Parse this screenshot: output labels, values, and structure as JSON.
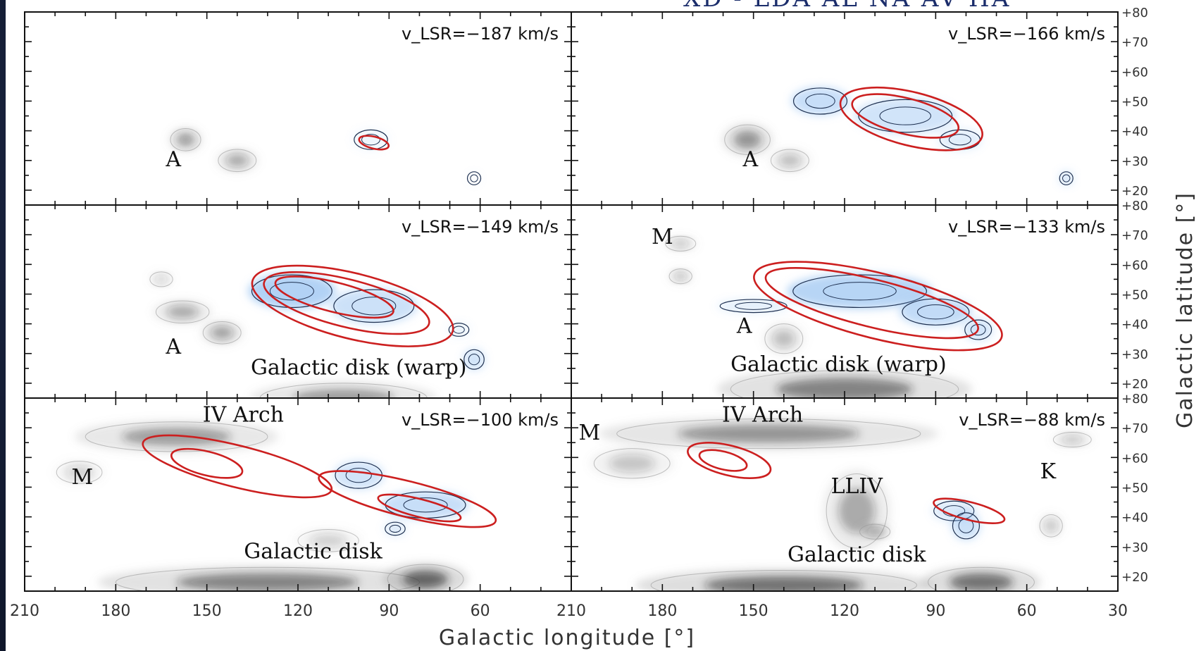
{
  "header_fragment": "XD - LDA AL NA AV HA",
  "chart_data": {
    "type": "heatmap",
    "xlabel": "Galactic longitude [°]",
    "ylabel": "Galactic latitude [°]",
    "xlim": [
      210,
      30
    ],
    "ylim": [
      15,
      80
    ],
    "x_ticks_left": [
      210,
      180,
      150,
      120,
      90,
      60
    ],
    "x_ticks_right": [
      210,
      180,
      150,
      120,
      90,
      60,
      30
    ],
    "y_ticks": [
      "+20",
      "+30",
      "+40",
      "+50",
      "+60",
      "+70",
      "+80"
    ],
    "panels": [
      {
        "velocity_label": "v_LSR=−187 km/s",
        "annotations": [
          {
            "text": "A",
            "l": 161,
            "b": 28
          }
        ],
        "gray_blobs": [
          {
            "l": 157,
            "b": 37,
            "sl": 4,
            "sb": 3,
            "a": 0.55
          },
          {
            "l": 140,
            "b": 30,
            "sl": 5,
            "sb": 3,
            "a": 0.45
          }
        ],
        "blue_blobs": [
          {
            "l": 96,
            "b": 37,
            "sl": 5,
            "sb": 3,
            "a": 0.15
          },
          {
            "l": 62,
            "b": 24,
            "sl": 2,
            "sb": 2,
            "a": 0.05
          }
        ],
        "red_contours": [
          {
            "l": 95,
            "b": 36,
            "rl": 5,
            "rb": 2
          }
        ]
      },
      {
        "velocity_label": "v_LSR=−166 km/s",
        "annotations": [
          {
            "text": "A",
            "l": 151,
            "b": 28
          }
        ],
        "gray_blobs": [
          {
            "l": 152,
            "b": 37,
            "sl": 6,
            "sb": 4,
            "a": 0.6
          },
          {
            "l": 138,
            "b": 30,
            "sl": 5,
            "sb": 3,
            "a": 0.35
          }
        ],
        "blue_blobs": [
          {
            "l": 128,
            "b": 50,
            "sl": 8,
            "sb": 4,
            "a": 0.55
          },
          {
            "l": 100,
            "b": 45,
            "sl": 14,
            "sb": 5,
            "a": 0.45
          },
          {
            "l": 82,
            "b": 37,
            "sl": 6,
            "sb": 3,
            "a": 0.3
          },
          {
            "l": 47,
            "b": 24,
            "sl": 2,
            "sb": 2,
            "a": 0.4
          }
        ],
        "red_contours": [
          {
            "l": 98,
            "b": 44,
            "rl": 24,
            "rb": 9
          },
          {
            "l": 100,
            "b": 45,
            "rl": 18,
            "rb": 6
          }
        ]
      },
      {
        "velocity_label": "v_LSR=−149 km/s",
        "annotations": [
          {
            "text": "A",
            "l": 161,
            "b": 30
          },
          {
            "text": "Galactic disk (warp)",
            "l": 100,
            "b": 23
          }
        ],
        "gray_blobs": [
          {
            "l": 158,
            "b": 44,
            "sl": 7,
            "sb": 3,
            "a": 0.45
          },
          {
            "l": 145,
            "b": 37,
            "sl": 5,
            "sb": 3,
            "a": 0.5
          },
          {
            "l": 165,
            "b": 55,
            "sl": 3,
            "sb": 2,
            "a": 0.25
          },
          {
            "l": 105,
            "b": 15,
            "sl": 22,
            "sb": 4,
            "a": 0.55
          }
        ],
        "blue_blobs": [
          {
            "l": 122,
            "b": 51,
            "sl": 12,
            "sb": 5,
            "a": 0.75
          },
          {
            "l": 95,
            "b": 46,
            "sl": 12,
            "sb": 5,
            "a": 0.5
          },
          {
            "l": 62,
            "b": 28,
            "sl": 3,
            "sb": 3,
            "a": 0.45
          },
          {
            "l": 67,
            "b": 38,
            "sl": 3,
            "sb": 2,
            "a": 0.2
          }
        ],
        "red_contours": [
          {
            "l": 102,
            "b": 46,
            "rl": 34,
            "rb": 11
          },
          {
            "l": 104,
            "b": 47,
            "rl": 28,
            "rb": 8
          },
          {
            "l": 108,
            "b": 49,
            "rl": 20,
            "rb": 5
          }
        ]
      },
      {
        "velocity_label": "v_LSR=−133 km/s",
        "annotations": [
          {
            "text": "M",
            "l": 180,
            "b": 67
          },
          {
            "text": "A",
            "l": 153,
            "b": 37
          },
          {
            "text": "Galactic disk (warp)",
            "l": 122,
            "b": 24
          }
        ],
        "gray_blobs": [
          {
            "l": 174,
            "b": 67,
            "sl": 4,
            "sb": 2,
            "a": 0.3
          },
          {
            "l": 174,
            "b": 56,
            "sl": 3,
            "sb": 2,
            "a": 0.35
          },
          {
            "l": 140,
            "b": 35,
            "sl": 5,
            "sb": 4,
            "a": 0.35
          },
          {
            "l": 120,
            "b": 18,
            "sl": 30,
            "sb": 5,
            "a": 0.7
          }
        ],
        "blue_blobs": [
          {
            "l": 115,
            "b": 51,
            "sl": 20,
            "sb": 5,
            "a": 0.7
          },
          {
            "l": 90,
            "b": 44,
            "sl": 10,
            "sb": 4,
            "a": 0.6
          },
          {
            "l": 76,
            "b": 38,
            "sl": 4,
            "sb": 3,
            "a": 0.45
          },
          {
            "l": 150,
            "b": 46,
            "sl": 10,
            "sb": 2,
            "a": 0.25
          }
        ],
        "red_contours": [
          {
            "l": 109,
            "b": 46,
            "rl": 42,
            "rb": 11
          },
          {
            "l": 111,
            "b": 47,
            "rl": 36,
            "rb": 8
          }
        ]
      },
      {
        "velocity_label": "v_LSR=−100 km/s",
        "annotations": [
          {
            "text": "IV Arch",
            "l": 138,
            "b": 72
          },
          {
            "text": "M",
            "l": 191,
            "b": 51
          },
          {
            "text": "Galactic disk",
            "l": 115,
            "b": 26
          }
        ],
        "gray_blobs": [
          {
            "l": 160,
            "b": 67,
            "sl": 24,
            "sb": 4,
            "a": 0.55
          },
          {
            "l": 192,
            "b": 55,
            "sl": 6,
            "sb": 3,
            "a": 0.25
          },
          {
            "l": 130,
            "b": 18,
            "sl": 40,
            "sb": 4,
            "a": 0.7
          },
          {
            "l": 78,
            "b": 19,
            "sl": 10,
            "sb": 4,
            "a": 0.85
          },
          {
            "l": 110,
            "b": 32,
            "sl": 8,
            "sb": 3,
            "a": 0.25
          }
        ],
        "blue_blobs": [
          {
            "l": 100,
            "b": 54,
            "sl": 7,
            "sb": 4,
            "a": 0.45
          },
          {
            "l": 78,
            "b": 44,
            "sl": 12,
            "sb": 4,
            "a": 0.55
          },
          {
            "l": 88,
            "b": 36,
            "sl": 3,
            "sb": 2,
            "a": 0.35
          }
        ],
        "red_contours": [
          {
            "l": 140,
            "b": 57,
            "rl": 32,
            "rb": 7
          },
          {
            "l": 150,
            "b": 58,
            "rl": 12,
            "rb": 4
          },
          {
            "l": 84,
            "b": 46,
            "rl": 30,
            "rb": 6
          },
          {
            "l": 80,
            "b": 43,
            "rl": 14,
            "rb": 3
          }
        ]
      },
      {
        "velocity_label": "v_LSR=−88 km/s",
        "annotations": [
          {
            "text": "IV Arch",
            "l": 147,
            "b": 72
          },
          {
            "text": "M",
            "l": 204,
            "b": 66
          },
          {
            "text": "K",
            "l": 53,
            "b": 53
          },
          {
            "text": "LLIV",
            "l": 116,
            "b": 48
          },
          {
            "text": "Galactic disk",
            "l": 116,
            "b": 25
          }
        ],
        "gray_blobs": [
          {
            "l": 145,
            "b": 68,
            "sl": 40,
            "sb": 4,
            "a": 0.6
          },
          {
            "l": 190,
            "b": 58,
            "sl": 10,
            "sb": 4,
            "a": 0.3
          },
          {
            "l": 116,
            "b": 42,
            "sl": 8,
            "sb": 10,
            "a": 0.45
          },
          {
            "l": 110,
            "b": 35,
            "sl": 4,
            "sb": 2,
            "a": 0.45
          },
          {
            "l": 140,
            "b": 17,
            "sl": 35,
            "sb": 4,
            "a": 0.8
          },
          {
            "l": 75,
            "b": 18,
            "sl": 14,
            "sb": 4,
            "a": 0.8
          },
          {
            "l": 45,
            "b": 66,
            "sl": 5,
            "sb": 2,
            "a": 0.3
          },
          {
            "l": 52,
            "b": 37,
            "sl": 3,
            "sb": 3,
            "a": 0.3
          }
        ],
        "blue_blobs": [
          {
            "l": 84,
            "b": 42,
            "sl": 6,
            "sb": 3,
            "a": 0.35
          },
          {
            "l": 80,
            "b": 37,
            "sl": 4,
            "sb": 4,
            "a": 0.5
          }
        ],
        "red_contours": [
          {
            "l": 158,
            "b": 59,
            "rl": 14,
            "rb": 5
          },
          {
            "l": 160,
            "b": 59,
            "rl": 8,
            "rb": 3
          },
          {
            "l": 79,
            "b": 42,
            "rl": 12,
            "rb": 3
          }
        ]
      }
    ]
  }
}
